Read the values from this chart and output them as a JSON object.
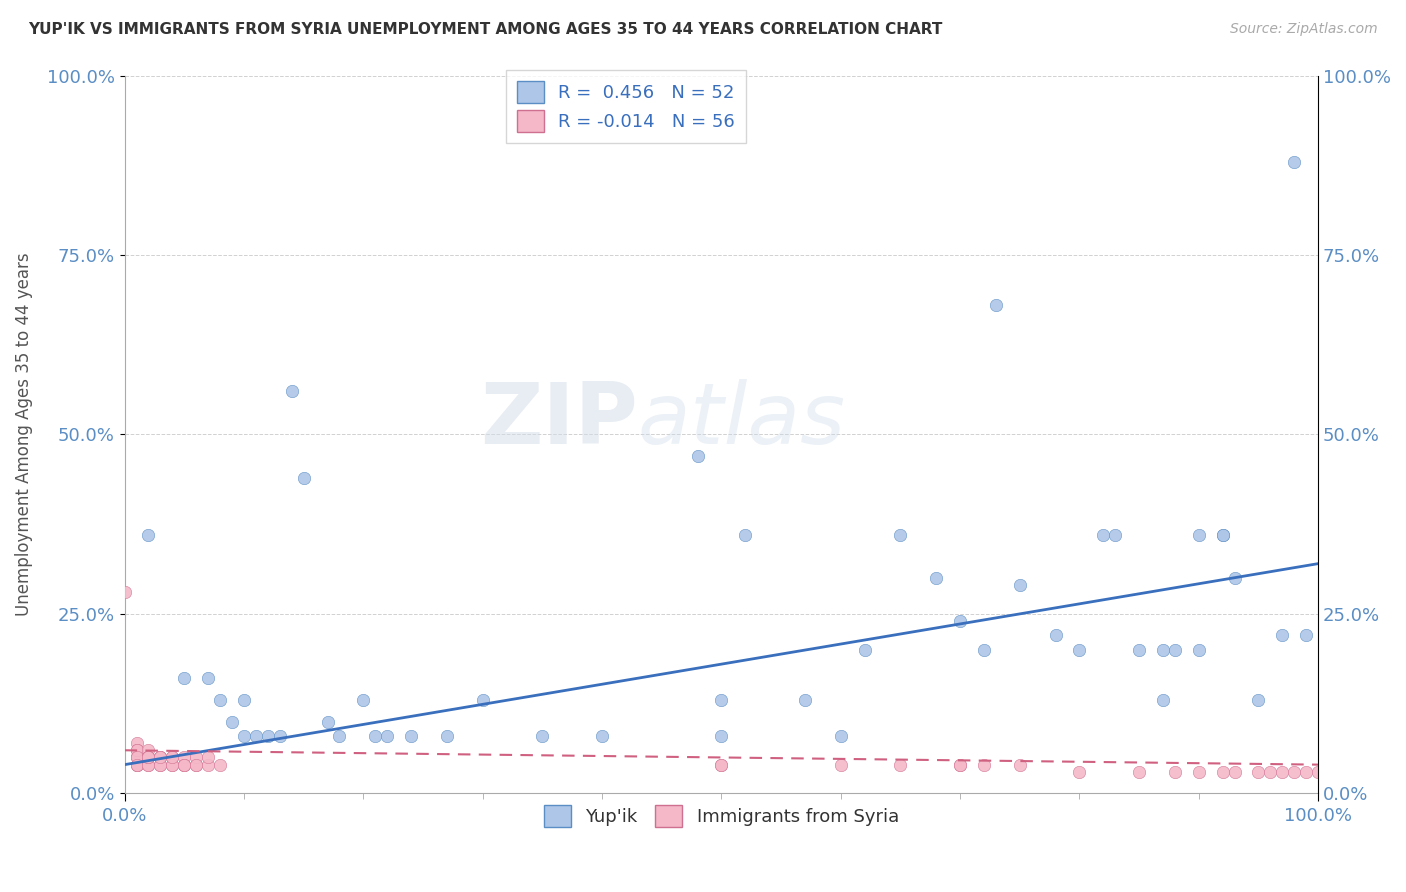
{
  "title": "YUP'IK VS IMMIGRANTS FROM SYRIA UNEMPLOYMENT AMONG AGES 35 TO 44 YEARS CORRELATION CHART",
  "source": "Source: ZipAtlas.com",
  "ylabel": "Unemployment Among Ages 35 to 44 years",
  "xlim": [
    0,
    1.0
  ],
  "ylim": [
    0,
    1.0
  ],
  "xtick_positions": [
    0.0,
    1.0
  ],
  "xtick_labels": [
    "0.0%",
    "100.0%"
  ],
  "ytick_values": [
    0.0,
    0.25,
    0.5,
    0.75,
    1.0
  ],
  "ytick_labels": [
    "0.0%",
    "25.0%",
    "50.0%",
    "75.0%",
    "100.0%"
  ],
  "legend_labels": [
    "Yup'ik",
    "Immigrants from Syria"
  ],
  "R_yupik": 0.456,
  "N_yupik": 52,
  "R_syria": -0.014,
  "N_syria": 56,
  "blue_fill": "#aec6e8",
  "blue_edge": "#5b8ec4",
  "pink_fill": "#f4b8c8",
  "pink_edge": "#d07090",
  "blue_line_color": "#3a6fbd",
  "pink_line_color": "#d06080",
  "tick_color": "#5b8ec4",
  "watermark_zip": "ZIP",
  "watermark_atlas": "atlas",
  "background_color": "#ffffff",
  "line_blue_start_y": 0.04,
  "line_blue_end_y": 0.32,
  "line_pink_start_y": 0.06,
  "line_pink_end_y": 0.04,
  "scatter_blue": [
    [
      0.02,
      0.36
    ],
    [
      0.05,
      0.16
    ],
    [
      0.07,
      0.16
    ],
    [
      0.08,
      0.13
    ],
    [
      0.09,
      0.1
    ],
    [
      0.1,
      0.13
    ],
    [
      0.1,
      0.08
    ],
    [
      0.11,
      0.08
    ],
    [
      0.12,
      0.08
    ],
    [
      0.13,
      0.08
    ],
    [
      0.14,
      0.56
    ],
    [
      0.15,
      0.44
    ],
    [
      0.17,
      0.1
    ],
    [
      0.18,
      0.08
    ],
    [
      0.2,
      0.13
    ],
    [
      0.21,
      0.08
    ],
    [
      0.22,
      0.08
    ],
    [
      0.24,
      0.08
    ],
    [
      0.27,
      0.08
    ],
    [
      0.3,
      0.13
    ],
    [
      0.35,
      0.08
    ],
    [
      0.4,
      0.08
    ],
    [
      0.48,
      0.47
    ],
    [
      0.5,
      0.13
    ],
    [
      0.5,
      0.08
    ],
    [
      0.52,
      0.36
    ],
    [
      0.57,
      0.13
    ],
    [
      0.6,
      0.08
    ],
    [
      0.62,
      0.2
    ],
    [
      0.65,
      0.36
    ],
    [
      0.68,
      0.3
    ],
    [
      0.7,
      0.24
    ],
    [
      0.72,
      0.2
    ],
    [
      0.73,
      0.68
    ],
    [
      0.75,
      0.29
    ],
    [
      0.78,
      0.22
    ],
    [
      0.8,
      0.2
    ],
    [
      0.82,
      0.36
    ],
    [
      0.83,
      0.36
    ],
    [
      0.85,
      0.2
    ],
    [
      0.87,
      0.13
    ],
    [
      0.87,
      0.2
    ],
    [
      0.88,
      0.2
    ],
    [
      0.9,
      0.36
    ],
    [
      0.9,
      0.2
    ],
    [
      0.92,
      0.36
    ],
    [
      0.92,
      0.36
    ],
    [
      0.93,
      0.3
    ],
    [
      0.95,
      0.13
    ],
    [
      0.97,
      0.22
    ],
    [
      0.98,
      0.88
    ],
    [
      0.99,
      0.22
    ]
  ],
  "scatter_pink": [
    [
      0.0,
      0.28
    ],
    [
      0.01,
      0.07
    ],
    [
      0.01,
      0.06
    ],
    [
      0.01,
      0.05
    ],
    [
      0.01,
      0.05
    ],
    [
      0.01,
      0.04
    ],
    [
      0.01,
      0.04
    ],
    [
      0.01,
      0.06
    ],
    [
      0.01,
      0.05
    ],
    [
      0.01,
      0.04
    ],
    [
      0.02,
      0.06
    ],
    [
      0.02,
      0.05
    ],
    [
      0.02,
      0.05
    ],
    [
      0.02,
      0.04
    ],
    [
      0.02,
      0.04
    ],
    [
      0.02,
      0.05
    ],
    [
      0.02,
      0.05
    ],
    [
      0.03,
      0.05
    ],
    [
      0.03,
      0.04
    ],
    [
      0.03,
      0.05
    ],
    [
      0.03,
      0.04
    ],
    [
      0.03,
      0.05
    ],
    [
      0.04,
      0.04
    ],
    [
      0.04,
      0.05
    ],
    [
      0.04,
      0.04
    ],
    [
      0.04,
      0.05
    ],
    [
      0.05,
      0.04
    ],
    [
      0.05,
      0.05
    ],
    [
      0.05,
      0.04
    ],
    [
      0.05,
      0.04
    ],
    [
      0.06,
      0.04
    ],
    [
      0.06,
      0.05
    ],
    [
      0.06,
      0.04
    ],
    [
      0.07,
      0.04
    ],
    [
      0.07,
      0.05
    ],
    [
      0.08,
      0.04
    ],
    [
      0.5,
      0.04
    ],
    [
      0.5,
      0.04
    ],
    [
      0.6,
      0.04
    ],
    [
      0.65,
      0.04
    ],
    [
      0.7,
      0.04
    ],
    [
      0.7,
      0.04
    ],
    [
      0.72,
      0.04
    ],
    [
      0.75,
      0.04
    ],
    [
      0.8,
      0.03
    ],
    [
      0.85,
      0.03
    ],
    [
      0.88,
      0.03
    ],
    [
      0.9,
      0.03
    ],
    [
      0.92,
      0.03
    ],
    [
      0.93,
      0.03
    ],
    [
      0.95,
      0.03
    ],
    [
      0.96,
      0.03
    ],
    [
      0.97,
      0.03
    ],
    [
      0.98,
      0.03
    ],
    [
      0.99,
      0.03
    ],
    [
      1.0,
      0.03
    ]
  ]
}
